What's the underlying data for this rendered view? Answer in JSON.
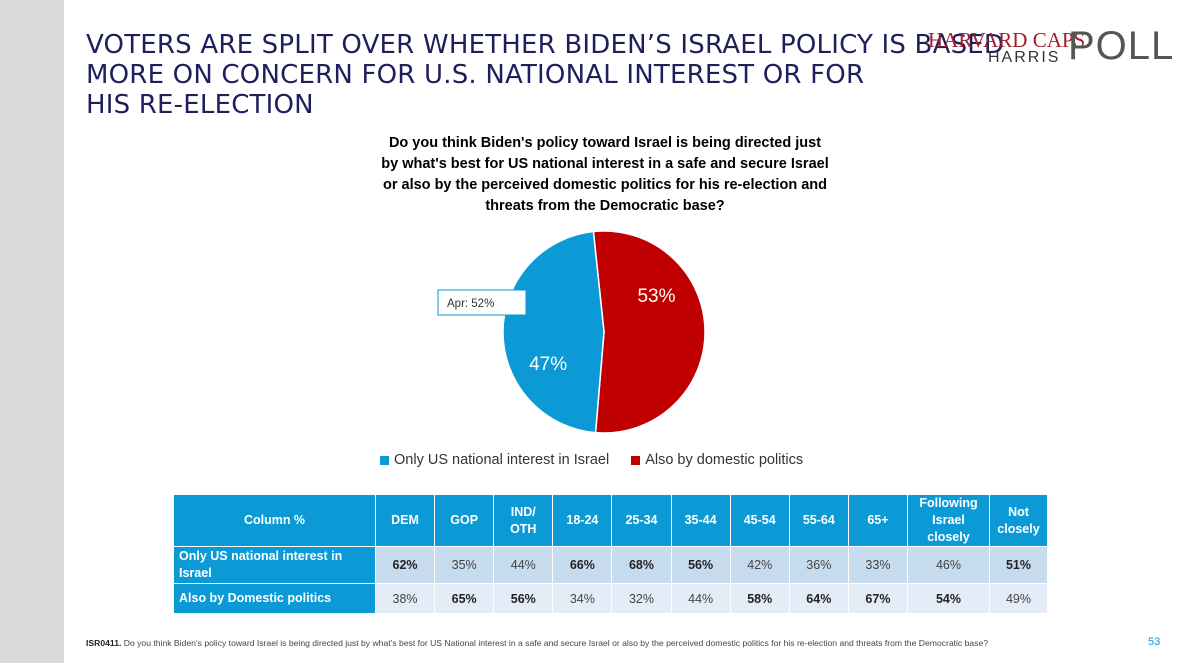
{
  "header": {
    "title_lines": [
      "VOTERS ARE SPLIT OVER WHETHER BIDEN’S ISRAEL POLICY IS BASED",
      "MORE ON CONCERN FOR U.S. NATIONAL INTEREST OR FOR",
      "HIS RE-ELECTION"
    ],
    "logo": {
      "line1": "HARVARD CAPS",
      "line2": "HARRIS",
      "line3": "POLL"
    }
  },
  "chart_data": {
    "type": "pie",
    "title": "Do you think Biden's policy toward Israel is being directed just by what's best for US national interest in a safe and secure Israel or also by the perceived domestic politics for his re-election and threats from the Democratic base?",
    "slices": [
      {
        "name": "Only US national interest in Israel",
        "value": 47,
        "label": "47%",
        "color": "#0b9ad6"
      },
      {
        "name": "Also by domestic politics",
        "value": 53,
        "label": "53%",
        "color": "#c00000"
      }
    ],
    "callout": "Apr: 52%",
    "legend_position": "bottom"
  },
  "table": {
    "headers": [
      "Column %",
      "DEM",
      "GOP",
      "IND/ OTH",
      "18-24",
      "25-34",
      "35-44",
      "45-54",
      "55-64",
      "65+",
      "Following Israel closely",
      "Not closely"
    ],
    "rows": [
      {
        "label": "Only US national interest in Israel",
        "values": [
          "62%",
          "35%",
          "44%",
          "66%",
          "68%",
          "56%",
          "42%",
          "36%",
          "33%",
          "46%",
          "51%"
        ],
        "bold": [
          true,
          false,
          false,
          true,
          true,
          true,
          false,
          false,
          false,
          false,
          true
        ]
      },
      {
        "label": "Also by Domestic politics",
        "values": [
          "38%",
          "65%",
          "56%",
          "34%",
          "32%",
          "44%",
          "58%",
          "64%",
          "67%",
          "54%",
          "49%"
        ],
        "bold": [
          false,
          true,
          true,
          false,
          false,
          false,
          true,
          true,
          true,
          true,
          false
        ]
      }
    ]
  },
  "footer": {
    "code": "ISR0411.",
    "text": " Do you think Biden’s policy toward Israel is being directed just by what’s best for US National interest in a safe and secure Israel or also by the perceived domestic politics for his re-election and threats from the Democratic base?",
    "page_number": "53"
  }
}
